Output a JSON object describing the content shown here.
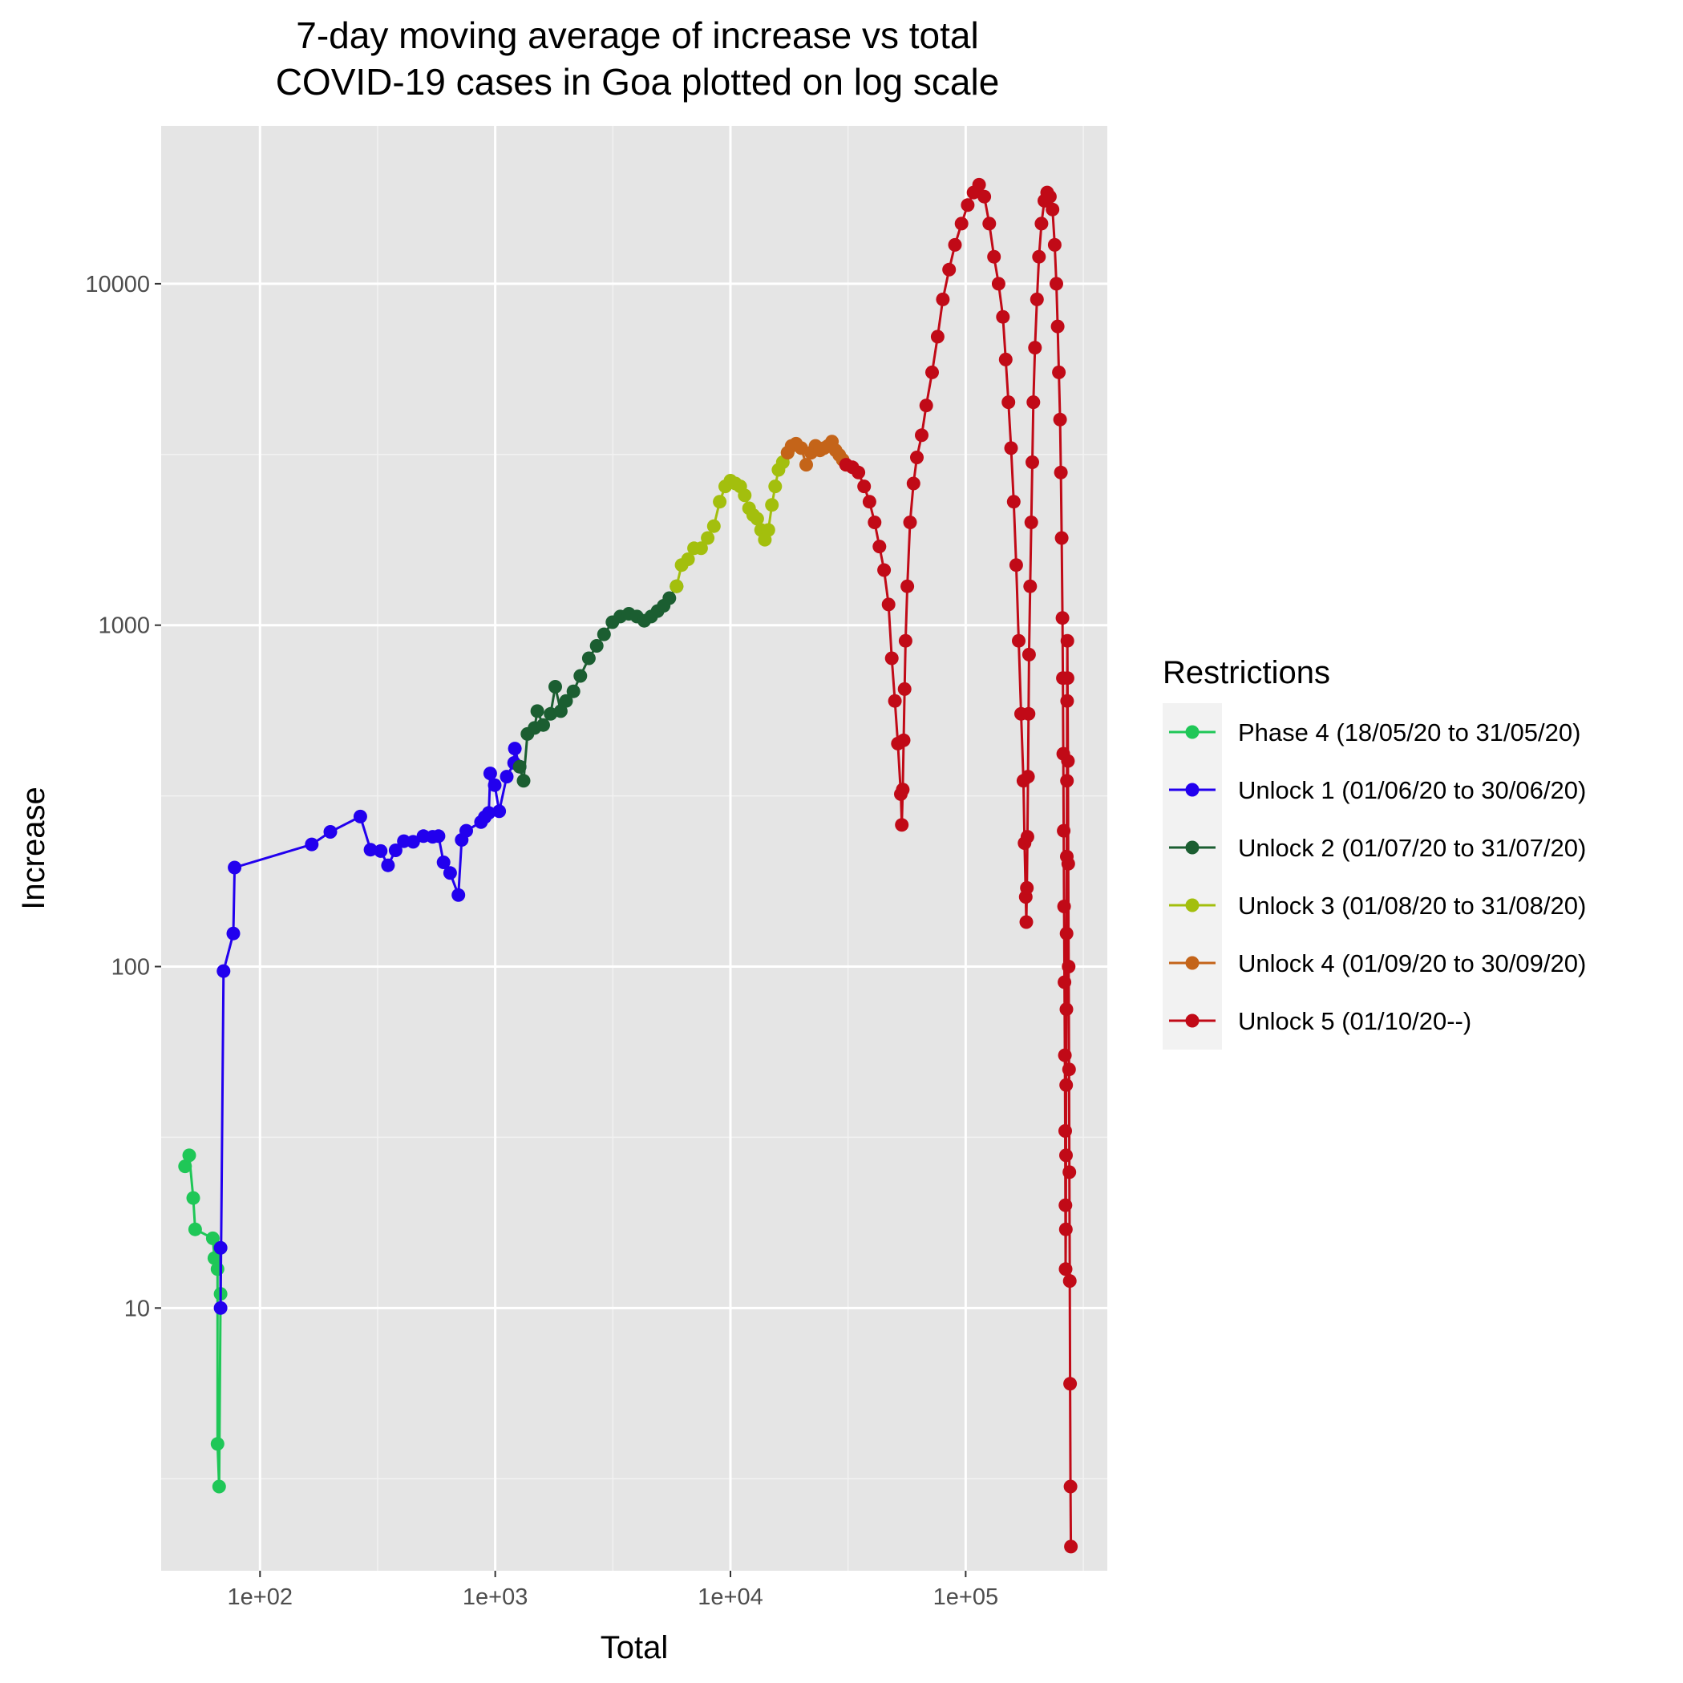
{
  "chart_data": {
    "type": "line",
    "title": [
      "7-day moving average of increase vs total",
      "COVID-19 cases in Goa plotted on log scale"
    ],
    "xlabel": "Total",
    "ylabel": "Increase",
    "xscale": "log10",
    "yscale": "log10",
    "xlim": [
      38,
      400000
    ],
    "ylim": [
      1.7,
      29000
    ],
    "x_ticks": [
      100,
      1000,
      10000,
      100000
    ],
    "x_tick_labels": [
      "1e+02",
      "1e+03",
      "1e+04",
      "1e+05"
    ],
    "y_ticks": [
      10,
      100,
      1000,
      10000
    ],
    "y_tick_labels": [
      "10",
      "100",
      "1000",
      "10000"
    ],
    "grid": true,
    "markers": true,
    "legend_title": "Restrictions",
    "legend_position": "right",
    "series": [
      {
        "name": "Phase 4 (18/05/20 to 31/05/20)",
        "color": "#1fc757",
        "points": [
          [
            48,
            26
          ],
          [
            50,
            28
          ],
          [
            52,
            21
          ],
          [
            53,
            17
          ],
          [
            63,
            16
          ],
          [
            64,
            14
          ],
          [
            66,
            13
          ],
          [
            66,
            4
          ],
          [
            67,
            3
          ],
          [
            68,
            11
          ],
          [
            68,
            15
          ]
        ]
      },
      {
        "name": "Unlock 1 (01/06/20 to 30/06/20)",
        "color": "#2200ee",
        "points": [
          [
            68,
            15
          ],
          [
            68,
            10
          ],
          [
            70,
            97
          ],
          [
            77,
            125
          ],
          [
            78,
            195
          ],
          [
            166,
            228
          ],
          [
            199,
            248
          ],
          [
            267,
            275
          ],
          [
            295,
            220
          ],
          [
            326,
            218
          ],
          [
            350,
            198
          ],
          [
            377,
            219
          ],
          [
            409,
            233
          ],
          [
            448,
            232
          ],
          [
            495,
            241
          ],
          [
            542,
            240
          ],
          [
            574,
            241
          ],
          [
            603,
            202
          ],
          [
            643,
            188
          ],
          [
            697,
            162
          ],
          [
            720,
            235
          ],
          [
            753,
            250
          ],
          [
            870,
            265
          ],
          [
            903,
            274
          ],
          [
            939,
            282
          ],
          [
            952,
            368
          ],
          [
            995,
            340
          ],
          [
            1040,
            285
          ],
          [
            1119,
            360
          ],
          [
            1203,
            395
          ],
          [
            1212,
            435
          ],
          [
            1270,
            385
          ]
        ]
      },
      {
        "name": "Unlock 2 (01/07/20 to 31/07/20)",
        "color": "#1b5e31",
        "points": [
          [
            1270,
            385
          ],
          [
            1320,
            350
          ],
          [
            1370,
            480
          ],
          [
            1470,
            500
          ],
          [
            1510,
            560
          ],
          [
            1600,
            510
          ],
          [
            1720,
            550
          ],
          [
            1800,
            660
          ],
          [
            1900,
            560
          ],
          [
            2000,
            600
          ],
          [
            2150,
            640
          ],
          [
            2300,
            710
          ],
          [
            2500,
            800
          ],
          [
            2700,
            870
          ],
          [
            2900,
            940
          ],
          [
            3150,
            1020
          ],
          [
            3400,
            1060
          ],
          [
            3700,
            1080
          ],
          [
            4000,
            1060
          ],
          [
            4300,
            1030
          ],
          [
            4600,
            1060
          ],
          [
            4900,
            1100
          ],
          [
            5200,
            1140
          ],
          [
            5500,
            1200
          ],
          [
            5900,
            1300
          ]
        ]
      },
      {
        "name": "Unlock 3 (01/08/20 to 31/08/20)",
        "color": "#a3bf0d",
        "points": [
          [
            5900,
            1300
          ],
          [
            6200,
            1500
          ],
          [
            6600,
            1560
          ],
          [
            7000,
            1680
          ],
          [
            7500,
            1680
          ],
          [
            8000,
            1800
          ],
          [
            8500,
            1950
          ],
          [
            9000,
            2300
          ],
          [
            9500,
            2550
          ],
          [
            10000,
            2650
          ],
          [
            10500,
            2600
          ],
          [
            11000,
            2550
          ],
          [
            11500,
            2400
          ],
          [
            12000,
            2200
          ],
          [
            12500,
            2100
          ],
          [
            13000,
            2050
          ],
          [
            13500,
            1900
          ],
          [
            14000,
            1780
          ],
          [
            14500,
            1900
          ],
          [
            15000,
            2250
          ],
          [
            15500,
            2550
          ],
          [
            16000,
            2850
          ],
          [
            16700,
            3000
          ],
          [
            17500,
            3200
          ]
        ]
      },
      {
        "name": "Unlock 4 (01/09/20 to 30/09/20)",
        "color": "#c46419",
        "points": [
          [
            17500,
            3200
          ],
          [
            18200,
            3350
          ],
          [
            19000,
            3400
          ],
          [
            20000,
            3300
          ],
          [
            21000,
            2950
          ],
          [
            22000,
            3200
          ],
          [
            23000,
            3350
          ],
          [
            24000,
            3250
          ],
          [
            25000,
            3300
          ],
          [
            26000,
            3350
          ],
          [
            27000,
            3450
          ],
          [
            28000,
            3250
          ],
          [
            29000,
            3150
          ],
          [
            30000,
            3050
          ],
          [
            31000,
            2950
          ]
        ]
      },
      {
        "name": "Unlock 5 (01/10/20--)",
        "color": "#c10a17",
        "points": [
          [
            31000,
            2950
          ],
          [
            33000,
            2900
          ],
          [
            35000,
            2800
          ],
          [
            37000,
            2550
          ],
          [
            39000,
            2300
          ],
          [
            41000,
            2000
          ],
          [
            43000,
            1700
          ],
          [
            45000,
            1450
          ],
          [
            47000,
            1150
          ],
          [
            48500,
            800
          ],
          [
            50000,
            600
          ],
          [
            51500,
            450
          ],
          [
            53000,
            320
          ],
          [
            53500,
            260
          ],
          [
            54000,
            330
          ],
          [
            54500,
            460
          ],
          [
            55000,
            650
          ],
          [
            55500,
            900
          ],
          [
            56500,
            1300
          ],
          [
            58000,
            2000
          ],
          [
            60000,
            2600
          ],
          [
            62000,
            3100
          ],
          [
            65000,
            3600
          ],
          [
            68000,
            4400
          ],
          [
            72000,
            5500
          ],
          [
            76000,
            7000
          ],
          [
            80000,
            9000
          ],
          [
            85000,
            11000
          ],
          [
            90000,
            13000
          ],
          [
            96000,
            15000
          ],
          [
            102000,
            17000
          ],
          [
            108000,
            18500
          ],
          [
            114000,
            19500
          ],
          [
            120000,
            18000
          ],
          [
            126000,
            15000
          ],
          [
            132000,
            12000
          ],
          [
            138000,
            10000
          ],
          [
            144000,
            8000
          ],
          [
            148000,
            6000
          ],
          [
            152000,
            4500
          ],
          [
            156000,
            3300
          ],
          [
            160000,
            2300
          ],
          [
            164000,
            1500
          ],
          [
            168000,
            900
          ],
          [
            172000,
            550
          ],
          [
            176000,
            350
          ],
          [
            178000,
            230
          ],
          [
            180000,
            160
          ],
          [
            181000,
            135
          ],
          [
            182000,
            170
          ],
          [
            183000,
            240
          ],
          [
            184000,
            360
          ],
          [
            185000,
            550
          ],
          [
            186000,
            820
          ],
          [
            188000,
            1300
          ],
          [
            190000,
            2000
          ],
          [
            192000,
            3000
          ],
          [
            194000,
            4500
          ],
          [
            197000,
            6500
          ],
          [
            201000,
            9000
          ],
          [
            205000,
            12000
          ],
          [
            210000,
            15000
          ],
          [
            216000,
            17500
          ],
          [
            222000,
            18500
          ],
          [
            228000,
            18000
          ],
          [
            234000,
            16500
          ],
          [
            239000,
            13000
          ],
          [
            243000,
            10000
          ],
          [
            246000,
            7500
          ],
          [
            249000,
            5500
          ],
          [
            252000,
            4000
          ],
          [
            254000,
            2800
          ],
          [
            256000,
            1800
          ],
          [
            258000,
            1050
          ],
          [
            259000,
            700
          ],
          [
            260000,
            420
          ],
          [
            261000,
            250
          ],
          [
            262000,
            150
          ],
          [
            263000,
            90
          ],
          [
            264000,
            55
          ],
          [
            265000,
            33
          ],
          [
            265500,
            20
          ],
          [
            266000,
            13
          ],
          [
            266500,
            17
          ],
          [
            267000,
            28
          ],
          [
            267500,
            45
          ],
          [
            268000,
            75
          ],
          [
            268500,
            125
          ],
          [
            269000,
            210
          ],
          [
            269500,
            350
          ],
          [
            270000,
            600
          ],
          [
            270500,
            900
          ],
          [
            271000,
            700
          ],
          [
            272000,
            400
          ],
          [
            273000,
            200
          ],
          [
            274000,
            100
          ],
          [
            275000,
            50
          ],
          [
            276000,
            25
          ],
          [
            277000,
            12
          ],
          [
            278000,
            6
          ],
          [
            279000,
            3
          ],
          [
            280000,
            2
          ]
        ]
      }
    ]
  }
}
